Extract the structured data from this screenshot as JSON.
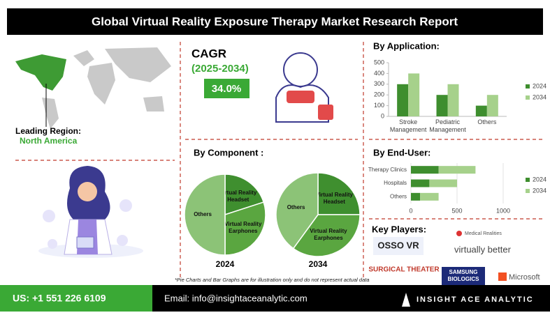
{
  "title": "Global Virtual Reality Exposure Therapy Market Research Report",
  "leading_region": {
    "label": "Leading Region:",
    "value": "North America"
  },
  "cagr": {
    "label": "CAGR",
    "period": "(2025-2034)",
    "value": "34.0%"
  },
  "component_title": "By Component :",
  "key_players": {
    "title": "Key Players:",
    "names": [
      "OSSO VR",
      "Medical Realities",
      "virtually better",
      "SURGICAL THEATER",
      "SAMSUNG BIOLOGICS",
      "Microsoft"
    ]
  },
  "note": "*Pie Charts and Bar Graphs are for illustration only and do not represent actual data",
  "footer": {
    "phone": "US: +1 551 226 6109",
    "email": "Email: info@insightaceanalytic.com",
    "brand": "INSIGHT ACE ANALYTIC"
  },
  "chart_data": [
    {
      "type": "bar",
      "title": "By Application:",
      "categories": [
        "Stroke Management",
        "Pediatric Management",
        "Others"
      ],
      "series": [
        {
          "name": "2024",
          "color": "#3e8e2e",
          "values": [
            300,
            200,
            100
          ]
        },
        {
          "name": "2034",
          "color": "#a6d18b",
          "values": [
            400,
            300,
            200
          ]
        }
      ],
      "ylim": [
        0,
        500
      ],
      "yticks": [
        0,
        100,
        200,
        300,
        400,
        500
      ],
      "legend": "right"
    },
    {
      "type": "hbar",
      "title": "By End-User:",
      "categories": [
        "Therapy Clinics",
        "Hospitals",
        "Others"
      ],
      "stacked": true,
      "series": [
        {
          "name": "2024",
          "color": "#3e8e2e",
          "values": [
            300,
            200,
            100
          ]
        },
        {
          "name": "2034",
          "color": "#a6d18b",
          "values": [
            400,
            300,
            200
          ]
        }
      ],
      "xlim": [
        0,
        1000
      ],
      "xticks": [
        0,
        500,
        1000
      ],
      "grid": true,
      "legend": "right"
    },
    {
      "type": "pie",
      "title": "2024",
      "categories": [
        "Virtual Reality Headset",
        "Virtual Reality Earphones",
        "Others"
      ],
      "values": [
        20,
        30,
        50
      ],
      "colors": [
        "#3f8f2f",
        "#5aa640",
        "#8cc377"
      ]
    },
    {
      "type": "pie",
      "title": "2034",
      "categories": [
        "Virtual Reality Headset",
        "Virtual Reality Earphones",
        "Others"
      ],
      "values": [
        25,
        35,
        40
      ],
      "colors": [
        "#3f8f2f",
        "#5aa640",
        "#8cc377"
      ]
    }
  ]
}
